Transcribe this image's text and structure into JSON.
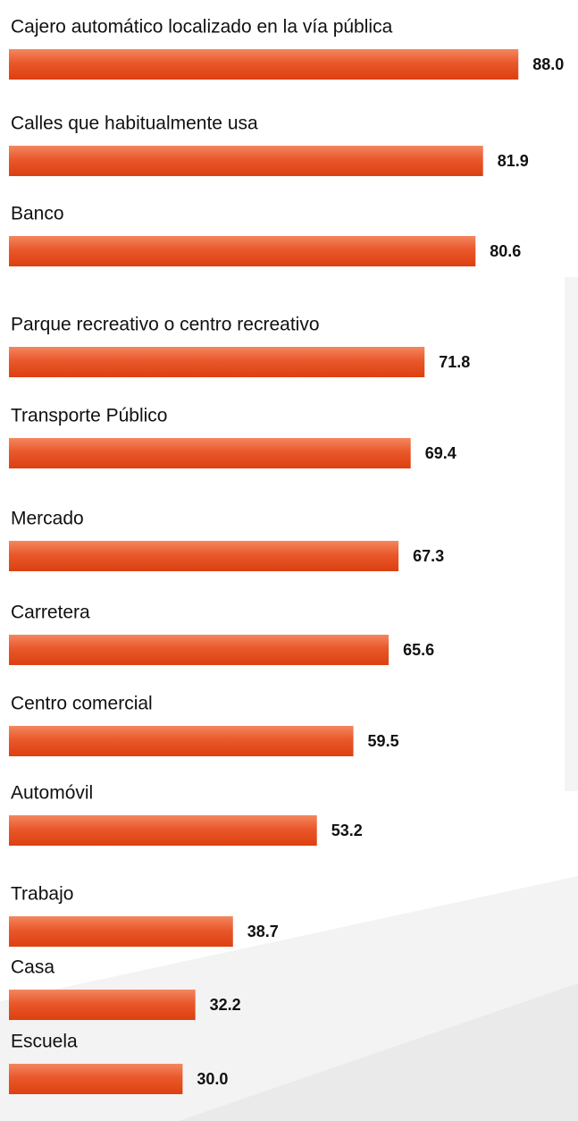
{
  "chart_data": {
    "type": "bar",
    "orientation": "horizontal",
    "categories": [
      "Cajero automático localizado en la vía pública",
      "Calles que habitualmente usa",
      "Banco",
      "Parque recreativo o centro recreativo",
      "Transporte Público",
      "Mercado",
      "Carretera",
      "Centro comercial",
      "Automóvil",
      "Trabajo",
      "Casa",
      "Escuela"
    ],
    "values": [
      88.0,
      81.9,
      80.6,
      71.8,
      69.4,
      67.3,
      65.6,
      59.5,
      53.2,
      38.7,
      32.2,
      30.0
    ],
    "value_labels": [
      "88.0",
      "81.9",
      "80.6",
      "71.8",
      "69.4",
      "67.3",
      "65.6",
      "59.5",
      "53.2",
      "38.7",
      "32.2",
      "30.0"
    ],
    "color": "#e4491d"
  }
}
